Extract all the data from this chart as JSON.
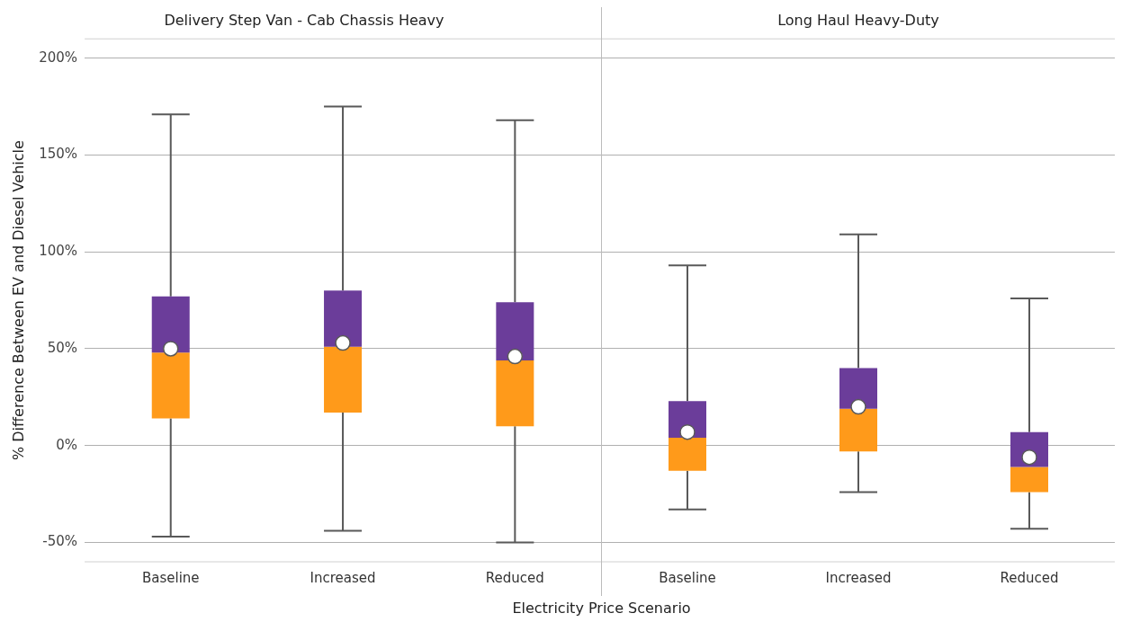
{
  "chart_data": [
    {
      "type": "box",
      "title": "Delivery Step Van - Cab Chassis Heavy",
      "ylabel": "% Difference Between EV and Diesel Vehicle",
      "xlabel": "Electricity Price Scenario",
      "categories": [
        "Baseline",
        "Increased",
        "Reduced"
      ],
      "color": "#6b3d9a",
      "colors": [
        "#ff9a1a",
        "#ff9a1a",
        "#ff9a1a"
      ],
      "boxes": [
        {
          "low": -47,
          "q1": 14,
          "median": 48,
          "q3": 77,
          "high": 171,
          "mean": 50
        },
        {
          "low": -44,
          "q1": 17,
          "median": 51,
          "q3": 80,
          "high": 175,
          "mean": 53
        },
        {
          "low": -50,
          "q1": 10,
          "median": 44,
          "q3": 74,
          "high": 168,
          "mean": 46
        }
      ],
      "ylim": [
        -60,
        210
      ],
      "yticks": [
        {
          "value": -50,
          "label": "-50%"
        },
        {
          "value": 0,
          "label": "0%"
        },
        {
          "value": 50,
          "label": "50%"
        },
        {
          "value": 100,
          "label": "100%"
        },
        {
          "value": 150,
          "label": "150%"
        },
        {
          "value": 200,
          "label": "200%"
        }
      ],
      "grid": "y"
    },
    {
      "type": "box",
      "title": "Long Haul Heavy-Duty",
      "categories": [
        "Baseline",
        "Increased",
        "Reduced"
      ],
      "color": "#6b3d9a",
      "colors": [
        "#ff9a1a",
        "#ff9a1a",
        "#ff9a1a"
      ],
      "boxes": [
        {
          "low": -33,
          "q1": -13,
          "median": 4,
          "q3": 23,
          "high": 93,
          "mean": 7
        },
        {
          "low": -24,
          "q1": -3,
          "median": 19,
          "q3": 40,
          "high": 109,
          "mean": 20
        },
        {
          "low": -43,
          "q1": -24,
          "median": -11,
          "q3": 7,
          "high": 76,
          "mean": -6
        }
      ],
      "ylim": [
        -60,
        210
      ],
      "yticks": [
        {
          "value": -50,
          "label": null
        },
        {
          "value": 0,
          "label": null
        },
        {
          "value": 50,
          "label": null
        },
        {
          "value": 100,
          "label": null
        },
        {
          "value": 150,
          "label": null
        },
        {
          "value": 200,
          "label": null
        }
      ],
      "grid": "y",
      "tick_labels": "x"
    }
  ]
}
